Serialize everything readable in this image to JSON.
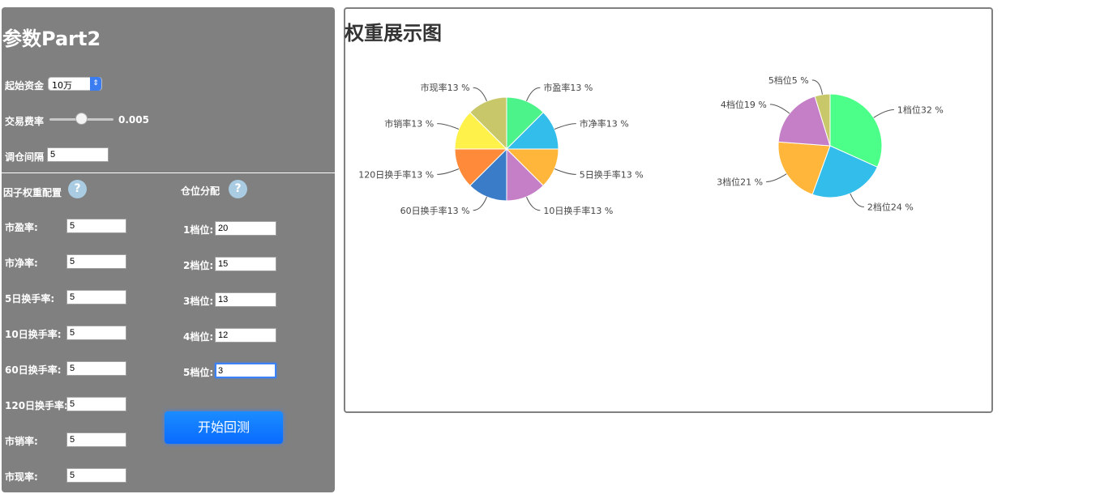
{
  "panel": {
    "title": "参数Part2",
    "capital_label": "起始资金",
    "capital_value": "10万",
    "fee_label": "交易费率",
    "fee_value": "0.005",
    "fee_level": 0.5,
    "rebalance_label": "调仓间隔",
    "rebalance_value": "5",
    "factor_header": "因子权重配置",
    "position_header": "仓位分配",
    "help_glyph": "?",
    "factors": [
      {
        "label": "市盈率:",
        "value": "5"
      },
      {
        "label": "市净率:",
        "value": "5"
      },
      {
        "label": "5日换手率:",
        "value": "5"
      },
      {
        "label": "10日换手率:",
        "value": "5"
      },
      {
        "label": "60日换手率:",
        "value": "5"
      },
      {
        "label": "120日换手率:",
        "value": "5"
      },
      {
        "label": "市销率:",
        "value": "5"
      },
      {
        "label": "市现率:",
        "value": "5"
      }
    ],
    "positions": [
      {
        "label": "1档位:",
        "value": "20"
      },
      {
        "label": "2档位:",
        "value": "15"
      },
      {
        "label": "3档位:",
        "value": "13"
      },
      {
        "label": "4档位:",
        "value": "12"
      },
      {
        "label": "5档位:",
        "value": "3"
      }
    ],
    "start_button": "开始回测"
  },
  "chart_title": "权重展示图",
  "chart_data": [
    {
      "type": "pie",
      "categories": [
        "市盈率",
        "市净率",
        "5日换手率",
        "10日换手率",
        "60日换手率",
        "120日换手率",
        "市销率",
        "市现率"
      ],
      "values": [
        12.5,
        12.5,
        12.5,
        12.5,
        12.5,
        12.5,
        12.5,
        12.5
      ],
      "labels": [
        "市盈率13 %",
        "市净率13 %",
        "5日换手率13 %",
        "10日换手率13 %",
        "60日换手率13 %",
        "120日换手率13 %",
        "市销率13 %",
        "市现率13 %"
      ],
      "colors": [
        "#4cf28a",
        "#33bdea",
        "#ffb63a",
        "#c47fc7",
        "#3a7cc8",
        "#ff8a3a",
        "#fef24a",
        "#c8c86a"
      ]
    },
    {
      "type": "pie",
      "categories": [
        "1档位",
        "2档位",
        "3档位",
        "4档位",
        "5档位"
      ],
      "values": [
        20,
        15,
        13,
        12,
        3
      ],
      "labels": [
        "1档位32 %",
        "2档位24 %",
        "3档位21 %",
        "4档位19 %",
        "5档位5 %"
      ],
      "colors": [
        "#4cff88",
        "#33bdea",
        "#ffb63a",
        "#c47fc7",
        "#c8c86a"
      ]
    }
  ]
}
